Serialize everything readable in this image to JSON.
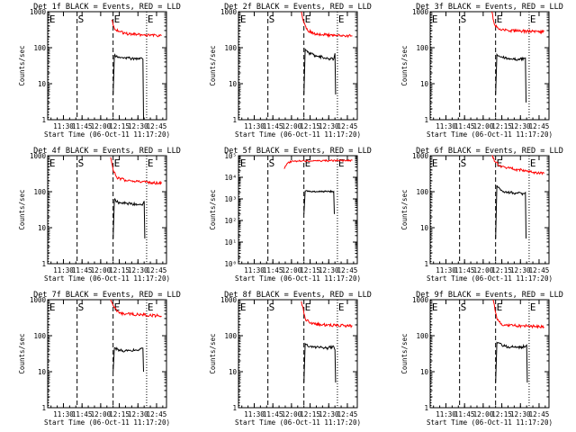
{
  "chart_data": [
    {
      "type": "line",
      "title": "Det 1f BLACK = Events, RED = LLD",
      "xlabel": "Start Time (06-Oct-11 11:17:20)",
      "ylabel": "Counts/sec",
      "scale": "log",
      "ylim": [
        1,
        1000
      ],
      "yticks": [
        "1",
        "10",
        "100",
        "1000"
      ],
      "xticks": [
        "11:30",
        "11:45",
        "12:00",
        "12:15",
        "12:30",
        "12:45"
      ],
      "markers": [
        {
          "label": "E",
          "time": "11:18"
        },
        {
          "label": "S",
          "time": "11:41"
        },
        {
          "label": "E",
          "time": "12:10"
        },
        {
          "label": "E",
          "time": "12:37"
        }
      ],
      "series": [
        {
          "color": "#ff0000",
          "points": [
            [
              "12:09",
              600
            ],
            [
              "12:11",
              340
            ],
            [
              "12:15",
              280
            ],
            [
              "12:20",
              250
            ],
            [
              "12:25",
              240
            ],
            [
              "12:30",
              230
            ],
            [
              "12:35",
              225
            ],
            [
              "12:40",
              220
            ],
            [
              "12:45",
              218
            ],
            [
              "12:49",
              215
            ]
          ]
        },
        {
          "color": "#000000",
          "points": [
            [
              "12:10",
              5
            ],
            [
              "12:11",
              60
            ],
            [
              "12:13",
              60
            ],
            [
              "12:15",
              55
            ],
            [
              "12:20",
              52
            ],
            [
              "12:25",
              50
            ],
            [
              "12:30",
              50
            ],
            [
              "12:33",
              52
            ],
            [
              "12:34",
              48
            ],
            [
              "12:34.5",
              1
            ]
          ]
        }
      ]
    },
    {
      "type": "line",
      "title": "Det 2f BLACK = Events, RED = LLD",
      "xlabel": "Start Time (06-Oct-11 11:17:20)",
      "ylabel": "Counts/sec",
      "scale": "log",
      "ylim": [
        1,
        1000
      ],
      "yticks": [
        "1",
        "10",
        "100",
        "1000"
      ],
      "xticks": [
        "11:30",
        "11:45",
        "12:00",
        "12:15",
        "12:30",
        "12:45"
      ],
      "markers": [
        {
          "label": "E",
          "time": "11:18"
        },
        {
          "label": "S",
          "time": "11:41"
        },
        {
          "label": "E",
          "time": "12:10"
        },
        {
          "label": "E",
          "time": "12:37"
        }
      ],
      "series": [
        {
          "color": "#ff0000",
          "points": [
            [
              "12:08",
              1000
            ],
            [
              "12:10",
              500
            ],
            [
              "12:13",
              300
            ],
            [
              "12:18",
              250
            ],
            [
              "12:25",
              230
            ],
            [
              "12:35",
              220
            ],
            [
              "12:45",
              215
            ],
            [
              "12:49",
              212
            ]
          ]
        },
        {
          "color": "#000000",
          "points": [
            [
              "12:10",
              5
            ],
            [
              "12:11",
              90
            ],
            [
              "12:14",
              70
            ],
            [
              "12:20",
              60
            ],
            [
              "12:25",
              55
            ],
            [
              "12:30",
              50
            ],
            [
              "12:34",
              48
            ],
            [
              "12:35",
              70
            ],
            [
              "12:35.5",
              5
            ]
          ]
        }
      ]
    },
    {
      "type": "line",
      "title": "Det 3f BLACK = Events, RED = LLD",
      "xlabel": "Start Time (06-Oct-11 11:17:20)",
      "ylabel": "Counts/sec",
      "scale": "log",
      "ylim": [
        1,
        1000
      ],
      "yticks": [
        "1",
        "10",
        "100",
        "1000"
      ],
      "xticks": [
        "11:30",
        "11:45",
        "12:00",
        "12:15",
        "12:30",
        "12:45"
      ],
      "markers": [
        {
          "label": "E",
          "time": "11:18"
        },
        {
          "label": "S",
          "time": "11:41"
        },
        {
          "label": "E",
          "time": "12:10"
        },
        {
          "label": "E",
          "time": "12:37"
        }
      ],
      "series": [
        {
          "color": "#ff0000",
          "points": [
            [
              "12:07",
              1000
            ],
            [
              "12:09",
              450
            ],
            [
              "12:13",
              320
            ],
            [
              "12:20",
              300
            ],
            [
              "12:30",
              290
            ],
            [
              "12:40",
              285
            ],
            [
              "12:49",
              280
            ]
          ]
        },
        {
          "color": "#000000",
          "points": [
            [
              "12:10",
              5
            ],
            [
              "12:11",
              65
            ],
            [
              "12:14",
              55
            ],
            [
              "12:20",
              50
            ],
            [
              "12:28",
              48
            ],
            [
              "12:33",
              50
            ],
            [
              "12:34",
              52
            ],
            [
              "12:34.5",
              3
            ]
          ]
        }
      ]
    },
    {
      "type": "line",
      "title": "Det 4f BLACK = Events, RED = LLD",
      "xlabel": "Start Time (06-Oct-11 11:17:20)",
      "ylabel": "Counts/sec",
      "scale": "log",
      "ylim": [
        1,
        1000
      ],
      "yticks": [
        "1",
        "10",
        "100",
        "1000"
      ],
      "xticks": [
        "11:30",
        "11:45",
        "12:00",
        "12:15",
        "12:30",
        "12:45"
      ],
      "markers": [
        {
          "label": "E",
          "time": "11:18"
        },
        {
          "label": "S",
          "time": "11:41"
        },
        {
          "label": "E",
          "time": "12:10"
        },
        {
          "label": "E",
          "time": "12:37"
        }
      ],
      "series": [
        {
          "color": "#ff0000",
          "points": [
            [
              "12:08",
              900
            ],
            [
              "12:10",
              400
            ],
            [
              "12:13",
              250
            ],
            [
              "12:20",
              210
            ],
            [
              "12:30",
              190
            ],
            [
              "12:40",
              180
            ],
            [
              "12:49",
              170
            ]
          ]
        },
        {
          "color": "#000000",
          "points": [
            [
              "12:10",
              5
            ],
            [
              "12:11",
              60
            ],
            [
              "12:14",
              50
            ],
            [
              "12:20",
              48
            ],
            [
              "12:28",
              45
            ],
            [
              "12:34",
              46
            ],
            [
              "12:35",
              55
            ],
            [
              "12:35.5",
              5
            ]
          ]
        }
      ]
    },
    {
      "type": "line",
      "title": "Det 5f BLACK = Events, RED = LLD",
      "xlabel": "Start Time (06-Oct-11 11:17:20)",
      "ylabel": "Counts/sec",
      "scale": "log",
      "ylim": [
        1,
        100000
      ],
      "yticks": [
        "10⁰",
        "10¹",
        "10²",
        "10³",
        "10⁴",
        "10⁵"
      ],
      "xticks": [
        "11:30",
        "11:45",
        "12:00",
        "12:15",
        "12:30",
        "12:45"
      ],
      "markers": [
        {
          "label": "E",
          "time": "11:18"
        },
        {
          "label": "S",
          "time": "11:41"
        },
        {
          "label": "E",
          "time": "12:10"
        },
        {
          "label": "E",
          "time": "12:37"
        }
      ],
      "series": [
        {
          "color": "#ff0000",
          "points": [
            [
              "11:54",
              25000
            ],
            [
              "11:57",
              45000
            ],
            [
              "12:00",
              55000
            ],
            [
              "12:10",
              58000
            ],
            [
              "12:20",
              58000
            ],
            [
              "12:30",
              59000
            ],
            [
              "12:40",
              60000
            ],
            [
              "12:49",
              60000
            ]
          ]
        },
        {
          "color": "#000000",
          "points": [
            [
              "12:10",
              200
            ],
            [
              "12:11",
              2300
            ],
            [
              "12:15",
              2200
            ],
            [
              "12:20",
              2200
            ],
            [
              "12:30",
              2200
            ],
            [
              "12:34",
              2200
            ],
            [
              "12:34.5",
              200
            ]
          ]
        }
      ]
    },
    {
      "type": "line",
      "title": "Det 6f BLACK = Events, RED = LLD",
      "xlabel": "Start Time (06-Oct-11 11:17:20)",
      "ylabel": "Counts/sec",
      "scale": "log",
      "ylim": [
        1,
        1000
      ],
      "yticks": [
        "1",
        "10",
        "100",
        "1000"
      ],
      "xticks": [
        "11:30",
        "11:45",
        "12:00",
        "12:15",
        "12:30",
        "12:45"
      ],
      "markers": [
        {
          "label": "E",
          "time": "11:18"
        },
        {
          "label": "S",
          "time": "11:41"
        },
        {
          "label": "E",
          "time": "12:10"
        },
        {
          "label": "E",
          "time": "12:37"
        }
      ],
      "series": [
        {
          "color": "#ff0000",
          "points": [
            [
              "12:07",
              1000
            ],
            [
              "12:10",
              650
            ],
            [
              "12:15",
              500
            ],
            [
              "12:25",
              420
            ],
            [
              "12:35",
              380
            ],
            [
              "12:45",
              330
            ],
            [
              "12:49",
              320
            ]
          ]
        },
        {
          "color": "#000000",
          "points": [
            [
              "12:10",
              5
            ],
            [
              "12:11",
              150
            ],
            [
              "12:14",
              110
            ],
            [
              "12:20",
              95
            ],
            [
              "12:28",
              90
            ],
            [
              "12:33",
              88
            ],
            [
              "12:34",
              95
            ],
            [
              "12:34.5",
              5
            ]
          ]
        }
      ]
    },
    {
      "type": "line",
      "title": "Det 7f BLACK = Events, RED = LLD",
      "xlabel": "Start Time (06-Oct-11 11:17:20)",
      "ylabel": "Counts/sec",
      "scale": "log",
      "ylim": [
        1,
        1000
      ],
      "yticks": [
        "1",
        "10",
        "100",
        "1000"
      ],
      "xticks": [
        "11:30",
        "11:45",
        "12:00",
        "12:15",
        "12:30",
        "12:45"
      ],
      "markers": [
        {
          "label": "E",
          "time": "11:18"
        },
        {
          "label": "S",
          "time": "11:41"
        },
        {
          "label": "E",
          "time": "12:10"
        },
        {
          "label": "E",
          "time": "12:37"
        }
      ],
      "series": [
        {
          "color": "#ff0000",
          "points": [
            [
              "12:08",
              1000
            ],
            [
              "12:11",
              600
            ],
            [
              "12:15",
              420
            ],
            [
              "12:25",
              400
            ],
            [
              "12:35",
              380
            ],
            [
              "12:45",
              360
            ],
            [
              "12:49",
              350
            ]
          ]
        },
        {
          "color": "#000000",
          "points": [
            [
              "12:10",
              10
            ],
            [
              "12:11",
              45
            ],
            [
              "12:15",
              40
            ],
            [
              "12:20",
              38
            ],
            [
              "12:28",
              40
            ],
            [
              "12:34",
              45
            ],
            [
              "12:34.5",
              10
            ]
          ]
        }
      ]
    },
    {
      "type": "line",
      "title": "Det 8f BLACK = Events, RED = LLD",
      "xlabel": "Start Time (06-Oct-11 11:17:20)",
      "ylabel": "Counts/sec",
      "scale": "log",
      "ylim": [
        1,
        1000
      ],
      "yticks": [
        "1",
        "10",
        "100",
        "1000"
      ],
      "xticks": [
        "11:30",
        "11:45",
        "12:00",
        "12:15",
        "12:30",
        "12:45"
      ],
      "markers": [
        {
          "label": "E",
          "time": "11:18"
        },
        {
          "label": "S",
          "time": "11:41"
        },
        {
          "label": "E",
          "time": "12:10"
        },
        {
          "label": "E",
          "time": "12:37"
        }
      ],
      "series": [
        {
          "color": "#ff0000",
          "points": [
            [
              "12:08",
              900
            ],
            [
              "12:11",
              300
            ],
            [
              "12:15",
              220
            ],
            [
              "12:25",
              200
            ],
            [
              "12:35",
              195
            ],
            [
              "12:45",
              190
            ],
            [
              "12:49",
              185
            ]
          ]
        },
        {
          "color": "#000000",
          "points": [
            [
              "12:10",
              5
            ],
            [
              "12:11",
              60
            ],
            [
              "12:15",
              50
            ],
            [
              "12:20",
              48
            ],
            [
              "12:28",
              45
            ],
            [
              "12:34",
              50
            ],
            [
              "12:35",
              40
            ],
            [
              "12:35.5",
              5
            ]
          ]
        }
      ]
    },
    {
      "type": "line",
      "title": "Det 9f BLACK = Events, RED = LLD",
      "xlabel": "Start Time (06-Oct-11 11:17:20)",
      "ylabel": "Counts/sec",
      "scale": "log",
      "ylim": [
        1,
        1000
      ],
      "yticks": [
        "1",
        "10",
        "100",
        "1000"
      ],
      "xticks": [
        "11:30",
        "11:45",
        "12:00",
        "12:15",
        "12:30",
        "12:45"
      ],
      "markers": [
        {
          "label": "E",
          "time": "11:18"
        },
        {
          "label": "S",
          "time": "11:41"
        },
        {
          "label": "E",
          "time": "12:10"
        },
        {
          "label": "E",
          "time": "12:37"
        }
      ],
      "series": [
        {
          "color": "#ff0000",
          "points": [
            [
              "12:08",
              1000
            ],
            [
              "12:11",
              300
            ],
            [
              "12:15",
              200
            ],
            [
              "12:25",
              190
            ],
            [
              "12:35",
              185
            ],
            [
              "12:45",
              180
            ],
            [
              "12:49",
              175
            ]
          ]
        },
        {
          "color": "#000000",
          "points": [
            [
              "12:10",
              5
            ],
            [
              "12:11",
              65
            ],
            [
              "12:15",
              55
            ],
            [
              "12:20",
              50
            ],
            [
              "12:28",
              48
            ],
            [
              "12:34",
              50
            ],
            [
              "12:35",
              55
            ],
            [
              "12:35.5",
              5
            ]
          ]
        }
      ]
    }
  ]
}
